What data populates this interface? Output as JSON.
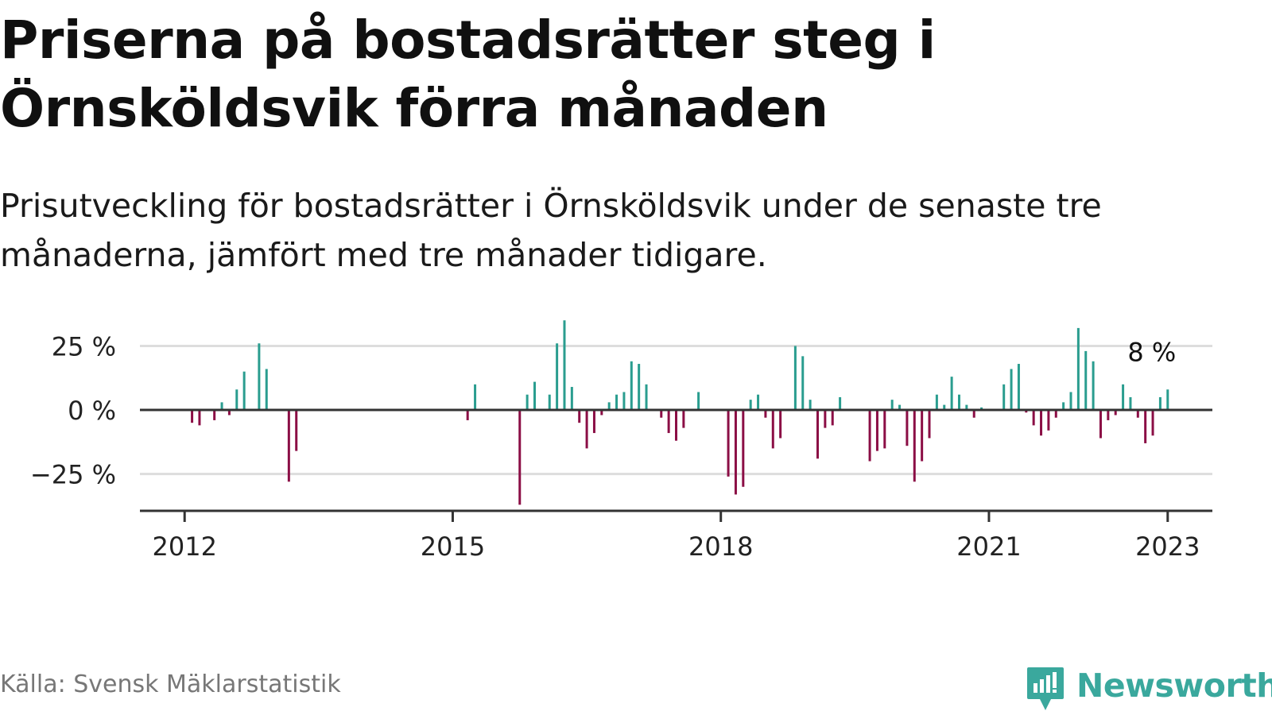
{
  "title": "Priserna på bostadsrätter steg i Örnsköldsvik förra månaden",
  "subtitle": "Prisutveckling för bostadsrätter i Örnsköldsvik under de senaste tre månaderna, jämfört med tre månader tidigare.",
  "source": "Källa: Svensk Mäklarstatistik",
  "brand": "Newsworthy",
  "colors": {
    "positive": "#2a9d8f",
    "negative": "#8b0e45",
    "brand": "#3aa89d",
    "grid": "#dddddd",
    "axis": "#333333"
  },
  "chart_data": {
    "type": "bar",
    "unit": "%",
    "y_ticks": [
      25,
      0,
      -25
    ],
    "y_tick_labels": [
      "25 %",
      "0 %",
      "−25 %"
    ],
    "ylim": [
      -40,
      36
    ],
    "x_ticks": [
      "2012-01",
      "2015-01",
      "2018-01",
      "2021-01",
      "2023-01"
    ],
    "x_tick_labels": [
      "2012",
      "2015",
      "2018",
      "2021",
      "2023"
    ],
    "xlim": [
      "2011-07",
      "2023-07"
    ],
    "grid": true,
    "last_value_label": "8 %",
    "values": [
      {
        "x": "2012-02",
        "y": -5
      },
      {
        "x": "2012-03",
        "y": -6
      },
      {
        "x": "2012-05",
        "y": -4
      },
      {
        "x": "2012-06",
        "y": 3
      },
      {
        "x": "2012-07",
        "y": -2
      },
      {
        "x": "2012-08",
        "y": 8
      },
      {
        "x": "2012-09",
        "y": 15
      },
      {
        "x": "2012-11",
        "y": 26
      },
      {
        "x": "2012-12",
        "y": 16
      },
      {
        "x": "2013-03",
        "y": -28
      },
      {
        "x": "2013-04",
        "y": -16
      },
      {
        "x": "2015-03",
        "y": -4
      },
      {
        "x": "2015-04",
        "y": 10
      },
      {
        "x": "2015-10",
        "y": -37
      },
      {
        "x": "2015-11",
        "y": 6
      },
      {
        "x": "2015-12",
        "y": 11
      },
      {
        "x": "2016-02",
        "y": 6
      },
      {
        "x": "2016-03",
        "y": 26
      },
      {
        "x": "2016-04",
        "y": 35
      },
      {
        "x": "2016-05",
        "y": 9
      },
      {
        "x": "2016-06",
        "y": -5
      },
      {
        "x": "2016-07",
        "y": -15
      },
      {
        "x": "2016-08",
        "y": -9
      },
      {
        "x": "2016-09",
        "y": -2
      },
      {
        "x": "2016-10",
        "y": 3
      },
      {
        "x": "2016-11",
        "y": 6
      },
      {
        "x": "2016-12",
        "y": 7
      },
      {
        "x": "2017-01",
        "y": 19
      },
      {
        "x": "2017-02",
        "y": 18
      },
      {
        "x": "2017-03",
        "y": 10
      },
      {
        "x": "2017-05",
        "y": -3
      },
      {
        "x": "2017-06",
        "y": -9
      },
      {
        "x": "2017-07",
        "y": -12
      },
      {
        "x": "2017-08",
        "y": -7
      },
      {
        "x": "2017-10",
        "y": 7
      },
      {
        "x": "2018-02",
        "y": -26
      },
      {
        "x": "2018-03",
        "y": -33
      },
      {
        "x": "2018-04",
        "y": -30
      },
      {
        "x": "2018-05",
        "y": 4
      },
      {
        "x": "2018-06",
        "y": 6
      },
      {
        "x": "2018-07",
        "y": -3
      },
      {
        "x": "2018-08",
        "y": -15
      },
      {
        "x": "2018-09",
        "y": -11
      },
      {
        "x": "2018-11",
        "y": 25
      },
      {
        "x": "2018-12",
        "y": 21
      },
      {
        "x": "2019-01",
        "y": 4
      },
      {
        "x": "2019-02",
        "y": -19
      },
      {
        "x": "2019-03",
        "y": -7
      },
      {
        "x": "2019-04",
        "y": -6
      },
      {
        "x": "2019-05",
        "y": 5
      },
      {
        "x": "2019-09",
        "y": -20
      },
      {
        "x": "2019-10",
        "y": -16
      },
      {
        "x": "2019-11",
        "y": -15
      },
      {
        "x": "2019-12",
        "y": 4
      },
      {
        "x": "2020-01",
        "y": 2
      },
      {
        "x": "2020-02",
        "y": -14
      },
      {
        "x": "2020-03",
        "y": -28
      },
      {
        "x": "2020-04",
        "y": -20
      },
      {
        "x": "2020-05",
        "y": -11
      },
      {
        "x": "2020-06",
        "y": 6
      },
      {
        "x": "2020-07",
        "y": 2
      },
      {
        "x": "2020-08",
        "y": 13
      },
      {
        "x": "2020-09",
        "y": 6
      },
      {
        "x": "2020-10",
        "y": 2
      },
      {
        "x": "2020-11",
        "y": -3
      },
      {
        "x": "2020-12",
        "y": 1
      },
      {
        "x": "2021-03",
        "y": 10
      },
      {
        "x": "2021-04",
        "y": 16
      },
      {
        "x": "2021-05",
        "y": 18
      },
      {
        "x": "2021-06",
        "y": -1
      },
      {
        "x": "2021-07",
        "y": -6
      },
      {
        "x": "2021-08",
        "y": -10
      },
      {
        "x": "2021-09",
        "y": -8
      },
      {
        "x": "2021-10",
        "y": -3
      },
      {
        "x": "2021-11",
        "y": 3
      },
      {
        "x": "2021-12",
        "y": 7
      },
      {
        "x": "2022-01",
        "y": 32
      },
      {
        "x": "2022-02",
        "y": 23
      },
      {
        "x": "2022-03",
        "y": 19
      },
      {
        "x": "2022-04",
        "y": -11
      },
      {
        "x": "2022-05",
        "y": -4
      },
      {
        "x": "2022-06",
        "y": -2
      },
      {
        "x": "2022-07",
        "y": 10
      },
      {
        "x": "2022-08",
        "y": 5
      },
      {
        "x": "2022-09",
        "y": -3
      },
      {
        "x": "2022-10",
        "y": -13
      },
      {
        "x": "2022-11",
        "y": -10
      },
      {
        "x": "2022-12",
        "y": 5
      },
      {
        "x": "2023-01",
        "y": 8
      }
    ]
  }
}
